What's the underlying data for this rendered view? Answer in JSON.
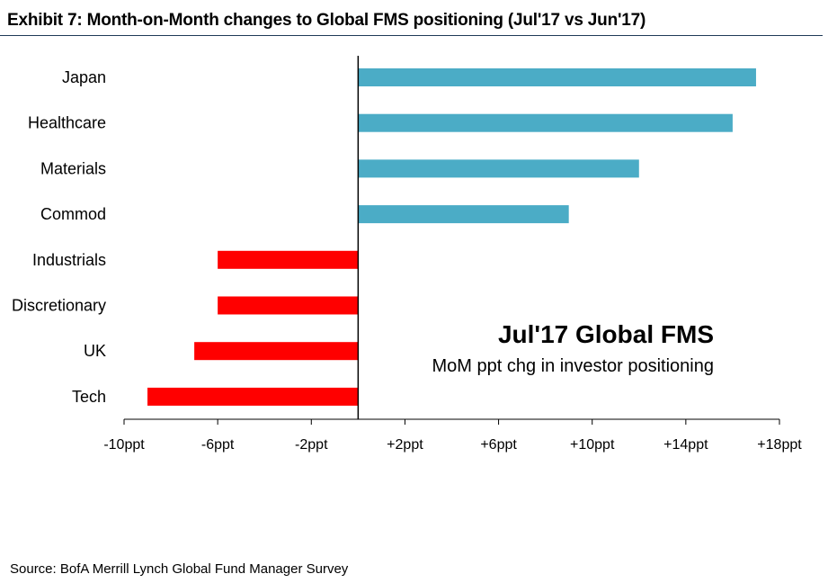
{
  "header": {
    "title": "Exhibit 7: Month-on-Month changes to Global FMS positioning (Jul'17 vs Jun'17)"
  },
  "chart_data": {
    "type": "bar",
    "orientation": "horizontal",
    "title": "Exhibit 7: Month-on-Month changes to Global FMS positioning (Jul'17 vs Jun'17)",
    "categories": [
      "Japan",
      "Healthcare",
      "Materials",
      "Commod",
      "Industrials",
      "Discretionary",
      "UK",
      "Tech"
    ],
    "values": [
      17,
      16,
      12,
      9,
      -6,
      -6,
      -7,
      -9
    ],
    "positive_color": "#4bacc6",
    "negative_color": "#ff0000",
    "xlim": [
      -10,
      18
    ],
    "xticks": [
      -10,
      -6,
      -2,
      2,
      6,
      10,
      14,
      18
    ],
    "xtick_labels": [
      "-10ppt",
      "-6ppt",
      "-2ppt",
      "+2ppt",
      "+6ppt",
      "+10ppt",
      "+14ppt",
      "+18ppt"
    ],
    "grid": false,
    "annotation": {
      "title": "Jul'17 Global FMS",
      "subtitle": "MoM ppt chg in investor positioning"
    }
  },
  "footer": {
    "source": "Source:  BofA Merrill Lynch Global Fund Manager Survey"
  }
}
